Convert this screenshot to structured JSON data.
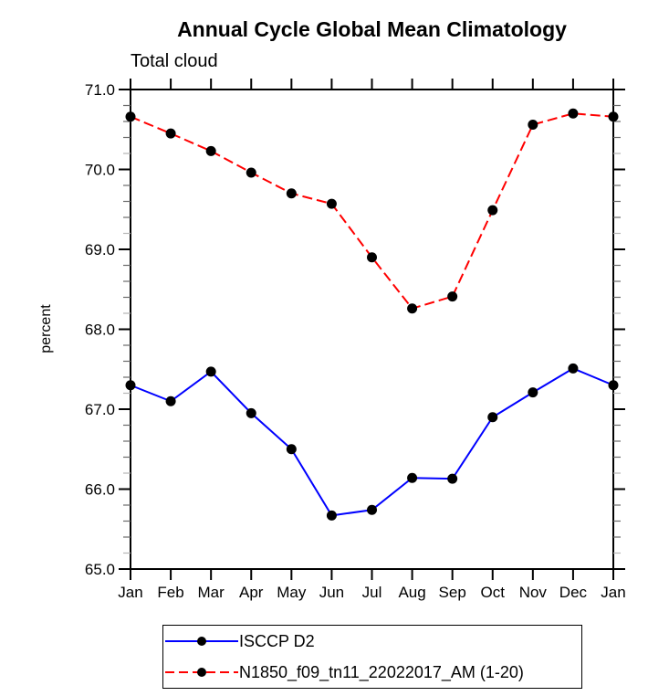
{
  "chart_data": {
    "type": "line",
    "title": "Annual Cycle Global Mean Climatology",
    "subtitle": "Total cloud",
    "xlabel": "",
    "ylabel": "percent",
    "categories": [
      "Jan",
      "Feb",
      "Mar",
      "Apr",
      "May",
      "Jun",
      "Jul",
      "Aug",
      "Sep",
      "Oct",
      "Nov",
      "Dec",
      "Jan"
    ],
    "series": [
      {
        "name": "ISCCP D2",
        "color": "#0000ff",
        "line_style": "solid",
        "marker": "filled-circle",
        "marker_color": "#000000",
        "values": [
          67.3,
          67.1,
          67.47,
          66.95,
          66.5,
          65.67,
          65.74,
          66.14,
          66.13,
          66.9,
          67.21,
          67.51,
          67.3
        ]
      },
      {
        "name": "N1850_f09_tn11_22022017_AM (1-20)",
        "color": "#ff0000",
        "line_style": "dashed",
        "marker": "filled-circle",
        "marker_color": "#000000",
        "values": [
          70.66,
          70.45,
          70.23,
          69.96,
          69.7,
          69.57,
          68.9,
          68.26,
          68.41,
          69.49,
          70.56,
          70.7,
          70.66
        ]
      }
    ],
    "ylim": [
      65.0,
      71.0
    ],
    "ytick_interval": 1.0,
    "yminor_interval": 0.2,
    "ytick_labels": [
      "65.0",
      "66.0",
      "67.0",
      "68.0",
      "69.0",
      "70.0",
      "71.0"
    ],
    "grid": false,
    "legend_position": "bottom",
    "axis_color": "#000000"
  }
}
